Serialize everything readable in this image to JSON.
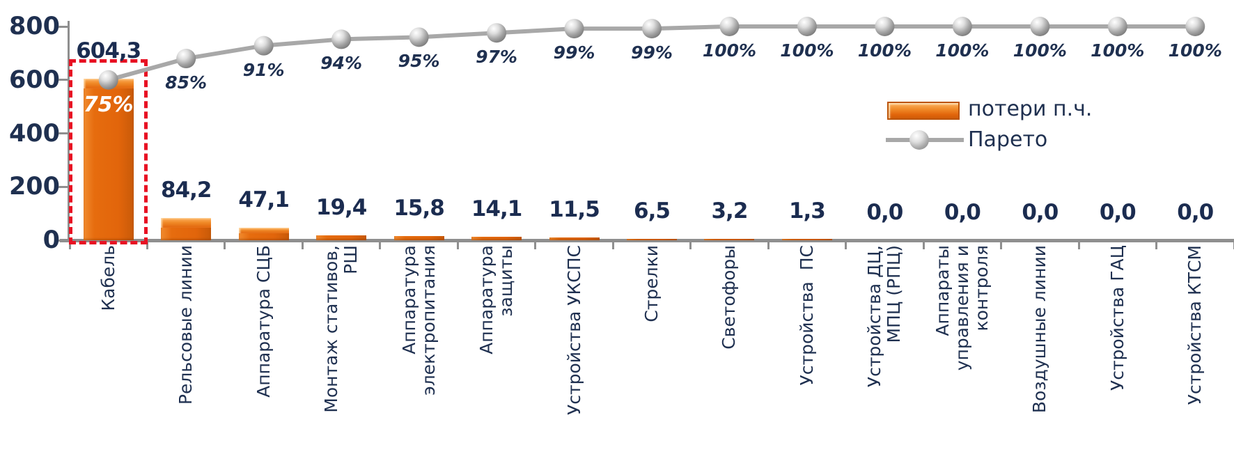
{
  "chart_data": {
    "type": "bar",
    "subtype": "pareto-combo",
    "title": "",
    "xlabel": "",
    "ylabel": "",
    "ylim": [
      0,
      800
    ],
    "yticks": [
      "0",
      "200",
      "400",
      "600",
      "800"
    ],
    "grid": false,
    "legend_position": "right-center-inside",
    "categories": [
      [
        "Кабель"
      ],
      [
        "Рельсовые линии"
      ],
      [
        "Аппаратура СЦБ"
      ],
      [
        "Монтаж стативов,",
        "РШ"
      ],
      [
        "Аппаратура",
        "электропитания"
      ],
      [
        "Аппаратура",
        "защиты"
      ],
      [
        "Устройства УКСПС"
      ],
      [
        "Стрелки"
      ],
      [
        "Светофоры"
      ],
      [
        "Устройства  ПС"
      ],
      [
        "Устройства ДЦ,",
        "МПЦ (РПЦ)"
      ],
      [
        "Аппараты",
        "управления и",
        "контроля"
      ],
      [
        "Воздушные линии"
      ],
      [
        "Устройства ГАЦ"
      ],
      [
        "Устройства КТСМ"
      ]
    ],
    "series": [
      {
        "name": "потери п.ч.",
        "type": "bar",
        "values": [
          604.3,
          84.2,
          47.1,
          19.4,
          15.8,
          14.1,
          11.5,
          6.5,
          3.2,
          1.3,
          0.0,
          0.0,
          0.0,
          0.0,
          0.0
        ],
        "value_labels": [
          "604,3",
          "84,2",
          "47,1",
          "19,4",
          "15,8",
          "14,1",
          "11,5",
          "6,5",
          "3,2",
          "1,3",
          "0,0",
          "0,0",
          "0,0",
          "0,0",
          "0,0"
        ]
      },
      {
        "name": "Парето",
        "type": "line",
        "values": [
          75,
          85,
          91,
          94,
          95,
          97,
          99,
          99,
          100,
          100,
          100,
          100,
          100,
          100,
          100
        ],
        "value_labels": [
          "75%",
          "85%",
          "91%",
          "94%",
          "95%",
          "97%",
          "99%",
          "99%",
          "100%",
          "100%",
          "100%",
          "100%",
          "100%",
          "100%",
          "100%"
        ]
      }
    ],
    "highlight": {
      "category_index": 0,
      "style": "red-dashed-box"
    },
    "colors": {
      "bar": "#e2650b",
      "bar_light": "#f9a851",
      "bar_dark": "#c85a08",
      "line": "#a8a8a8",
      "marker": "#b5b5b5",
      "text": "#1f3050",
      "pct_inside_text": "#ffffff",
      "highlight": "#e81123",
      "axis": "#8f8f8f"
    }
  }
}
